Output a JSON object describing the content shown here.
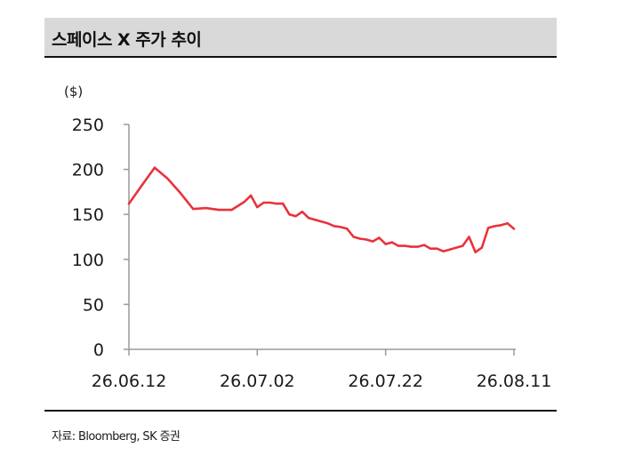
{
  "header": {
    "title": "스페이스 X 주가 추이"
  },
  "footer": {
    "source": "자료: Bloomberg, SK 증권"
  },
  "chart_data": {
    "type": "line",
    "title": "스페이스 X 주가 추이",
    "xlabel": "",
    "ylabel": "($)",
    "ylim": [
      0,
      250
    ],
    "yticks": [
      0,
      50,
      100,
      150,
      200,
      250
    ],
    "xtick_labels": [
      "26.06.12",
      "26.07.02",
      "26.07.22",
      "26.08.11"
    ],
    "grid": false,
    "line_color": "#e8333b",
    "series": [
      {
        "name": "",
        "x": [
          "26.06.12",
          "26.06.14",
          "26.06.16",
          "26.06.18",
          "26.06.20",
          "26.06.22",
          "26.06.24",
          "26.06.26",
          "26.06.28",
          "26.06.30",
          "26.07.01",
          "26.07.02",
          "26.07.03",
          "26.07.04",
          "26.07.05",
          "26.07.06",
          "26.07.07",
          "26.07.08",
          "26.07.09",
          "26.07.10",
          "26.07.11",
          "26.07.12",
          "26.07.13",
          "26.07.14",
          "26.07.15",
          "26.07.16",
          "26.07.17",
          "26.07.18",
          "26.07.19",
          "26.07.20",
          "26.07.21",
          "26.07.22",
          "26.07.23",
          "26.07.24",
          "26.07.25",
          "26.07.26",
          "26.07.27",
          "26.07.28",
          "26.07.29",
          "26.07.30",
          "26.07.31",
          "26.08.01",
          "26.08.02",
          "26.08.03",
          "26.08.04",
          "26.08.05",
          "26.08.06",
          "26.08.07",
          "26.08.08",
          "26.08.09",
          "26.08.10",
          "26.08.11"
        ],
        "values": [
          162,
          182,
          202,
          190,
          174,
          156,
          157,
          155,
          155,
          164,
          171,
          158,
          163,
          163,
          162,
          162,
          150,
          148,
          153,
          146,
          144,
          142,
          140,
          137,
          136,
          134,
          125,
          123,
          122,
          120,
          124,
          117,
          119,
          115,
          115,
          114,
          114,
          116,
          112,
          112,
          109,
          111,
          113,
          115,
          125,
          108,
          113,
          135,
          137,
          138,
          140,
          134
        ]
      }
    ]
  }
}
